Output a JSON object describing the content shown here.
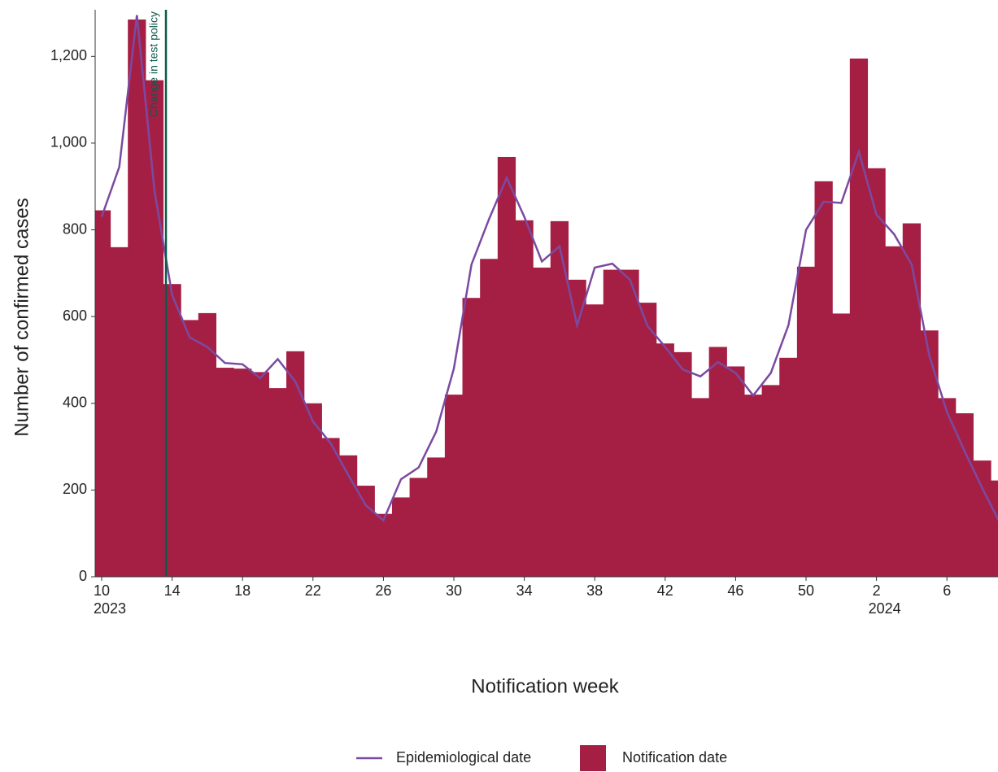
{
  "chart_data": {
    "type": "bar",
    "x_label": "Notification week",
    "y_label": "Number of confirmed cases",
    "categories": [
      "10",
      null,
      null,
      null,
      "14",
      null,
      null,
      null,
      "18",
      null,
      null,
      null,
      "22",
      null,
      null,
      null,
      "26",
      null,
      null,
      null,
      "30",
      null,
      null,
      null,
      "34",
      null,
      null,
      null,
      "38",
      null,
      null,
      null,
      "42",
      null,
      null,
      null,
      "46",
      null,
      null,
      null,
      "50",
      null,
      null,
      null,
      "2",
      null,
      null,
      null,
      "6",
      null,
      null,
      null
    ],
    "category_years": [
      "2023",
      null,
      null,
      null,
      null,
      null,
      null,
      null,
      null,
      null,
      null,
      null,
      null,
      null,
      null,
      null,
      null,
      null,
      null,
      null,
      null,
      null,
      null,
      null,
      null,
      null,
      null,
      null,
      null,
      null,
      null,
      null,
      null,
      null,
      null,
      null,
      null,
      null,
      null,
      null,
      null,
      null,
      null,
      null,
      "2024",
      null,
      null,
      null,
      null,
      null,
      null,
      null
    ],
    "series": [
      {
        "name": "Notification date",
        "kind": "bar",
        "color": "#a51f45",
        "values": [
          845,
          760,
          1285,
          1145,
          675,
          592,
          608,
          482,
          480,
          472,
          435,
          520,
          400,
          320,
          280,
          210,
          145,
          183,
          228,
          275,
          420,
          643,
          733,
          968,
          822,
          713,
          820,
          685,
          628,
          708,
          708,
          632,
          538,
          518,
          412,
          530,
          485,
          420,
          442,
          505,
          715,
          912,
          607,
          1195,
          942,
          762,
          815,
          568,
          412,
          377,
          268,
          222
        ]
      },
      {
        "name": "Epidemiological date",
        "kind": "line",
        "color": "#7b4aa0",
        "values": [
          830,
          945,
          1295,
          890,
          650,
          552,
          530,
          493,
          490,
          458,
          502,
          450,
          358,
          308,
          235,
          165,
          130,
          225,
          252,
          335,
          480,
          720,
          825,
          920,
          830,
          727,
          762,
          580,
          713,
          722,
          685,
          578,
          530,
          478,
          462,
          495,
          470,
          418,
          470,
          580,
          800,
          865,
          862,
          980,
          835,
          790,
          720,
          510,
          380,
          290,
          205,
          125
        ]
      }
    ],
    "annotation": "Change in test policy",
    "annotation_color": "#0b5a4a",
    "ylim": [
      0,
      1300
    ],
    "yticks": [
      0,
      200,
      400,
      600,
      800,
      {
        "value": 1000,
        "label": "1,000"
      },
      {
        "value": 1200,
        "label": "1,200"
      }
    ],
    "legend": "bottom"
  }
}
